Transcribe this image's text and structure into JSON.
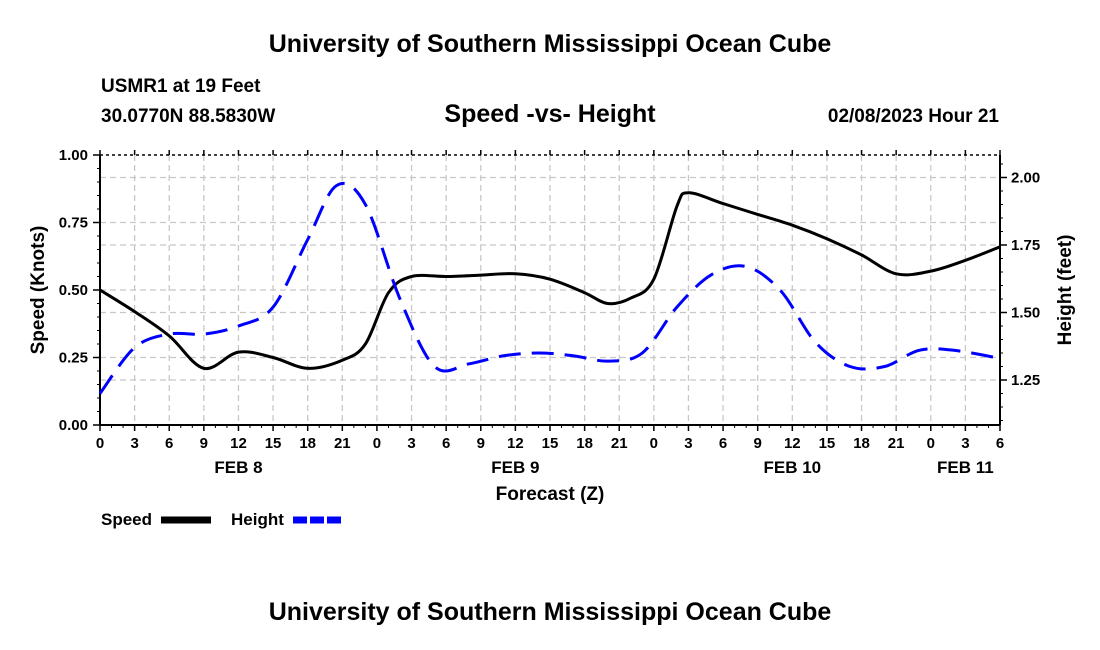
{
  "page_title": "University of Southern Mississippi Ocean Cube",
  "footer_title": "University of Southern Mississippi Ocean Cube",
  "header": {
    "station": "USMR1 at 19 Feet",
    "coords": "30.0770N  88.5830W",
    "subtitle": "Speed -vs- Height",
    "datetime": "02/08/2023 Hour 21"
  },
  "chart_data": {
    "type": "line",
    "title": "Speed -vs- Height",
    "xlabel": "Forecast (Z)",
    "ylabel_left": "Speed (Knots)",
    "ylabel_right": "Height (feet)",
    "x_range_hours": [
      0,
      78
    ],
    "x_tick_labels": [
      "0",
      "3",
      "6",
      "9",
      "12",
      "15",
      "18",
      "21",
      "0",
      "3",
      "6",
      "9",
      "12",
      "15",
      "18",
      "21",
      "0",
      "3",
      "6",
      "9",
      "12",
      "15",
      "18",
      "21",
      "0",
      "3",
      "6"
    ],
    "date_labels": [
      {
        "label": "FEB 8",
        "hour": 12
      },
      {
        "label": "FEB 9",
        "hour": 36
      },
      {
        "label": "FEB 10",
        "hour": 60
      },
      {
        "label": "FEB 11",
        "hour": 75
      }
    ],
    "y_left": {
      "min": 0,
      "max": 1.0,
      "ticks": [
        0.0,
        0.25,
        0.5,
        0.75,
        1.0
      ],
      "tick_labels": [
        "0.00",
        "0.25",
        "0.50",
        "0.75",
        "1.00"
      ]
    },
    "y_right": {
      "min": 1.0833,
      "max": 2.0833,
      "ticks": [
        1.25,
        1.5,
        1.75,
        2.0
      ],
      "tick_labels": [
        "1.25",
        "1.50",
        "1.75",
        "2.00"
      ]
    },
    "series": [
      {
        "name": "Speed",
        "axis": "left",
        "color": "#000000",
        "style": "solid",
        "x": [
          0,
          3,
          6,
          9,
          12,
          15,
          18,
          21,
          23,
          25,
          27,
          30,
          33,
          36,
          39,
          42,
          44,
          46,
          48,
          50,
          51,
          54,
          57,
          60,
          63,
          66,
          69,
          72,
          75,
          78
        ],
        "values": [
          0.5,
          0.42,
          0.33,
          0.21,
          0.27,
          0.25,
          0.21,
          0.24,
          0.3,
          0.49,
          0.55,
          0.55,
          0.555,
          0.56,
          0.54,
          0.49,
          0.45,
          0.47,
          0.54,
          0.81,
          0.86,
          0.82,
          0.78,
          0.74,
          0.69,
          0.63,
          0.56,
          0.57,
          0.61,
          0.66
        ]
      },
      {
        "name": "Height",
        "axis": "right",
        "color": "#0000ff",
        "style": "dashed",
        "x": [
          0,
          3,
          6,
          9,
          12,
          15,
          18,
          20.5,
          23,
          26,
          29,
          32,
          35,
          38,
          41,
          44,
          47,
          50,
          53,
          56,
          59,
          62,
          65,
          68,
          71,
          74,
          78
        ],
        "values": [
          1.2,
          1.37,
          1.42,
          1.42,
          1.45,
          1.52,
          1.77,
          1.97,
          1.9,
          1.55,
          1.3,
          1.31,
          1.34,
          1.35,
          1.34,
          1.32,
          1.35,
          1.52,
          1.64,
          1.67,
          1.58,
          1.39,
          1.3,
          1.3,
          1.36,
          1.36,
          1.33
        ]
      }
    ],
    "legend": [
      {
        "label": "Speed",
        "color": "#000000",
        "style": "solid"
      },
      {
        "label": "Height",
        "color": "#0000ff",
        "style": "dashed"
      }
    ]
  }
}
